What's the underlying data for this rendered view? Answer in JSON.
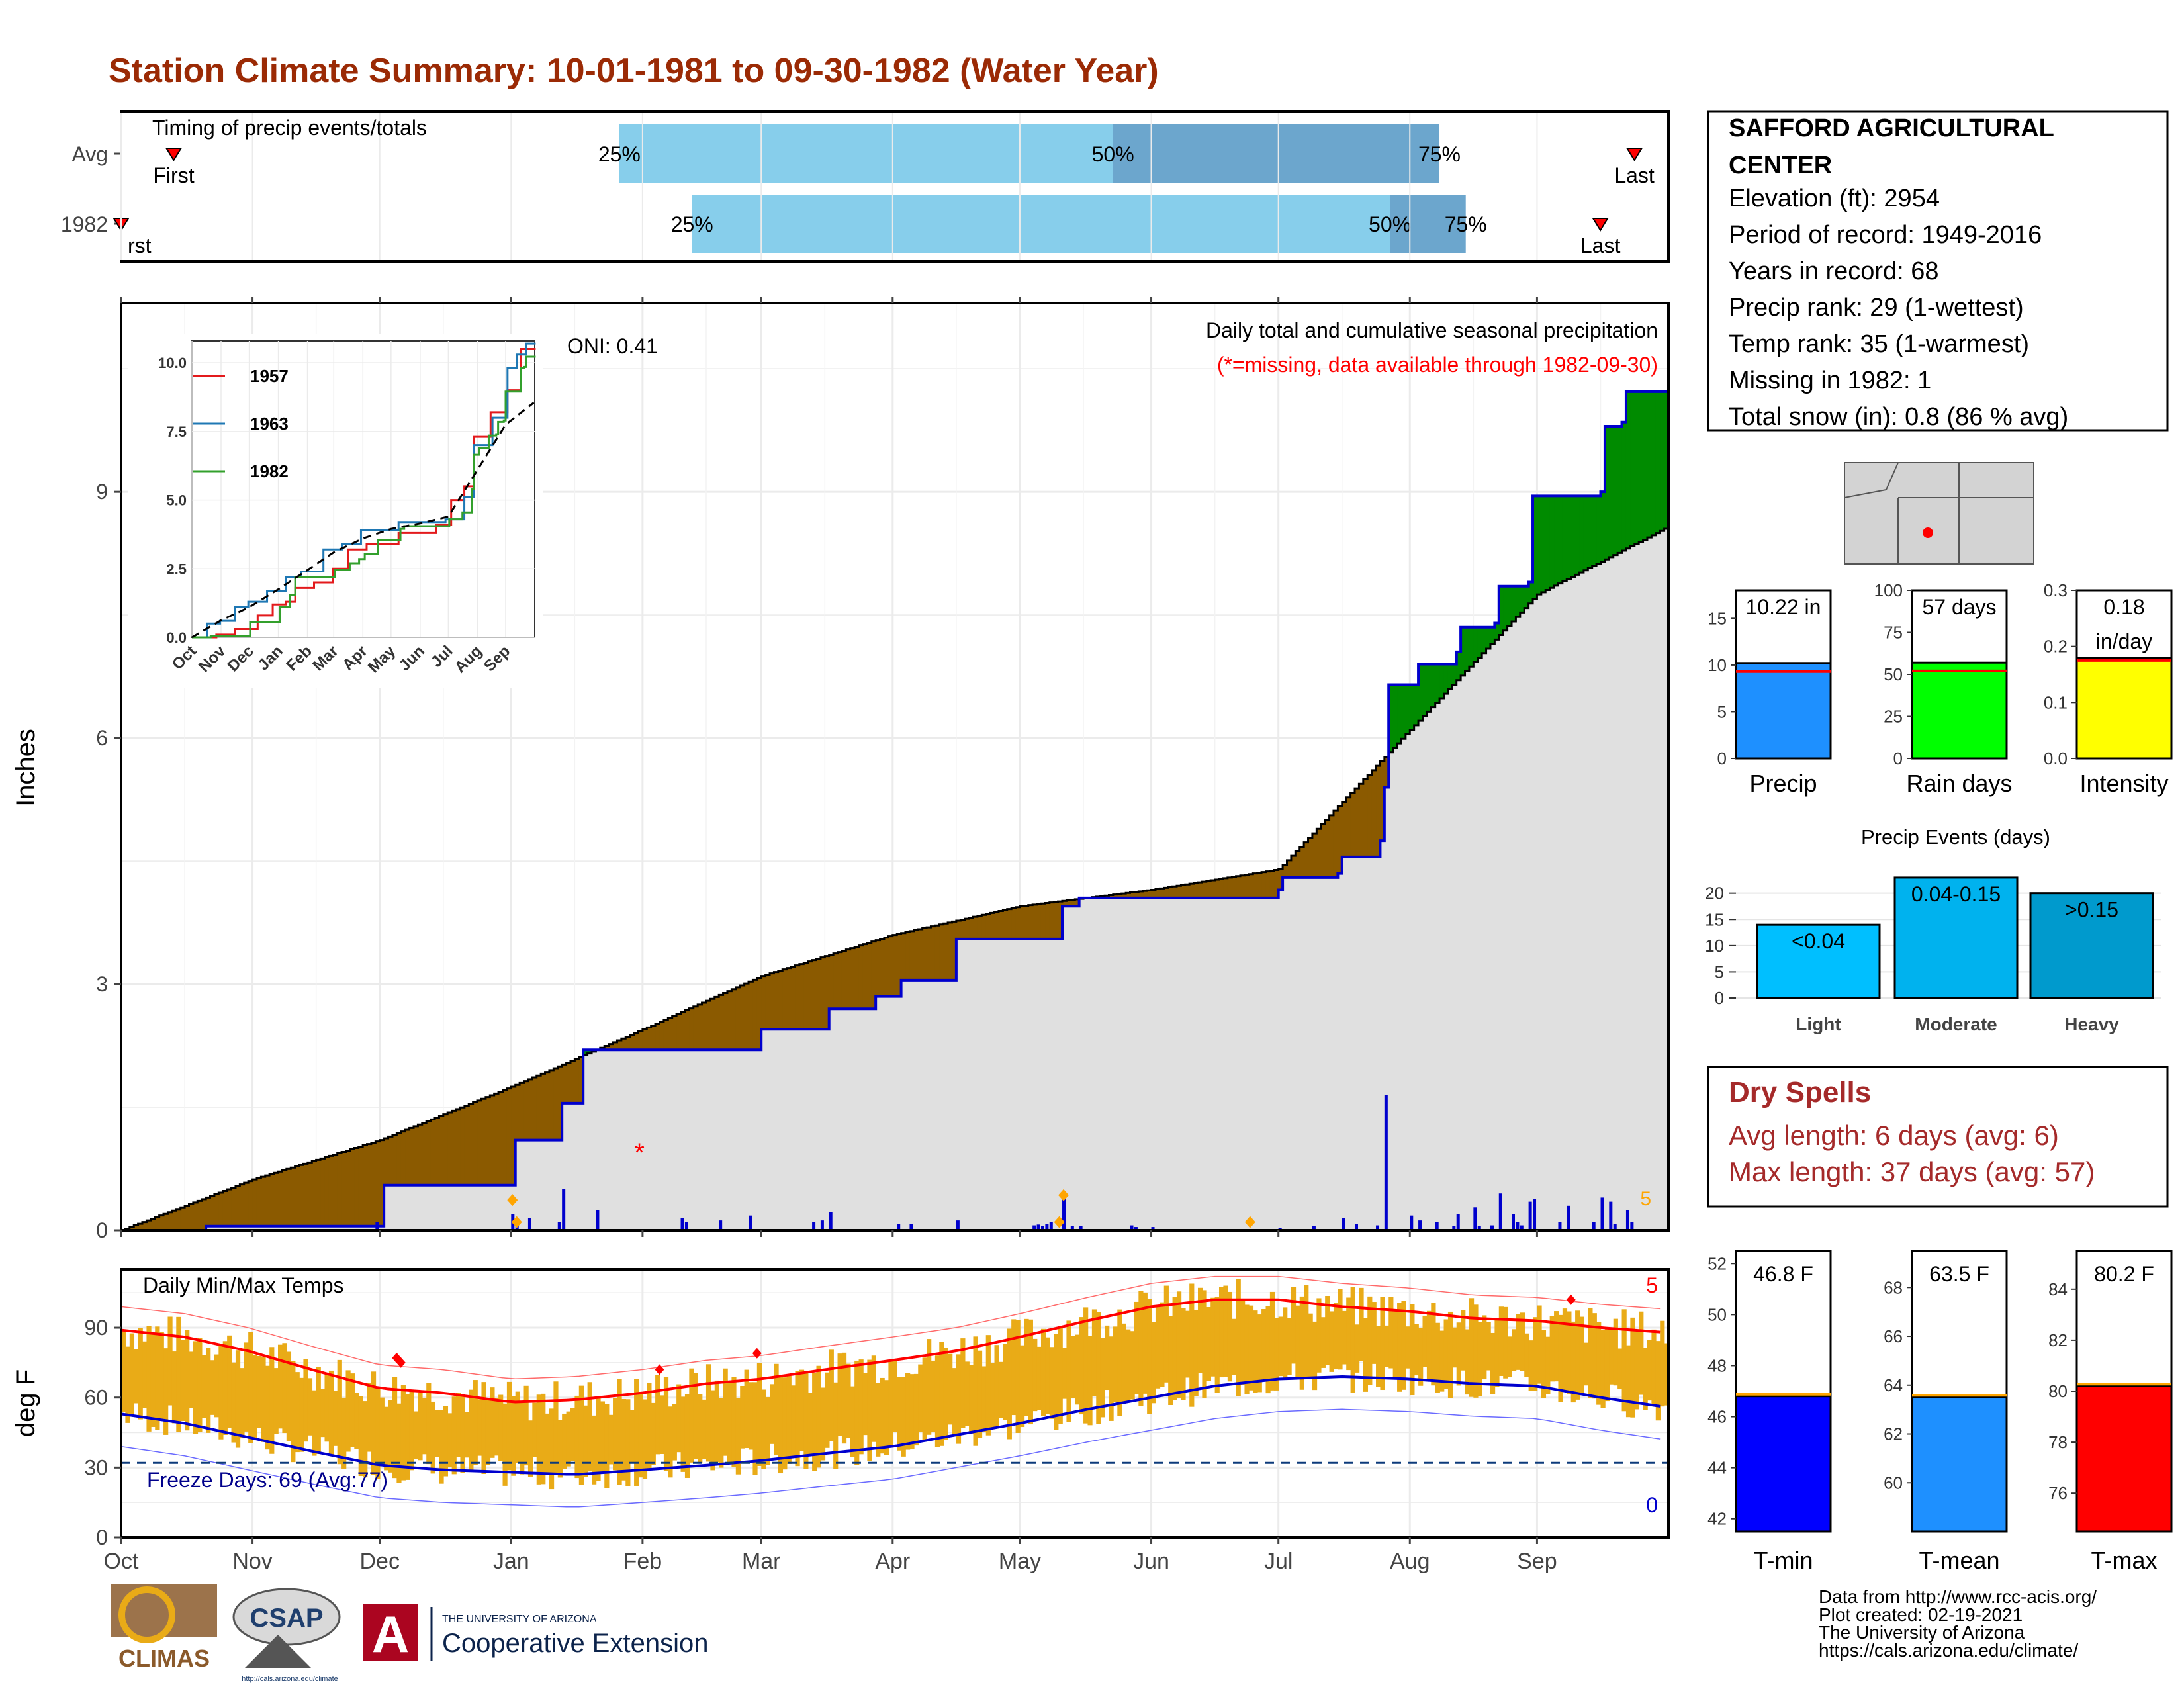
{
  "title": "Station Climate Summary: 10-01-1981 to 09-30-1982 (Water Year)",
  "colors": {
    "title": "#9b2a05",
    "light_blue": "#87ceeb",
    "mid_blue": "#6ca6cd",
    "gray_fill": "#e0e0e0",
    "above_avg": "#008b00",
    "below_avg": "#8b5a00",
    "obs_line": "#0000cd",
    "bar_yellow": "#e9ab17",
    "tmax_line": "#ff0000",
    "tmin_line": "#00008b",
    "precip_bar": "#1e90ff",
    "rain_bar": "#00ff00",
    "int_bar": "#ffff00",
    "light_ev": "#00bfff",
    "mod_ev": "#00b2ee",
    "heavy_ev": "#009acd",
    "tmin_bar": "#0000ff",
    "tmean_bar": "#1e90ff",
    "tmax_bar": "#ff0000",
    "dry_text": "#a52a2a"
  },
  "timing": {
    "title": "Timing of precip events/totals",
    "rows": [
      {
        "label": "Avg",
        "p25": 0.322,
        "p50": 0.641,
        "p75": 0.852,
        "first": 0.034,
        "last": 0.978,
        "l25": "25%",
        "l50": "50%",
        "l75": "75%",
        "lfirst": "First",
        "llast": "Last"
      },
      {
        "label": "1982",
        "p25": 0.369,
        "p50": 0.82,
        "p75": 0.869,
        "first": 0.0,
        "last": 0.956,
        "l25": "25%",
        "l50": "50%",
        "l75": "75%",
        "lfirst": "First",
        "llast": "Last"
      }
    ]
  },
  "station": {
    "name_line1": "SAFFORD AGRICULTURAL",
    "name_line2": "CENTER",
    "lines": [
      "Elevation (ft): 2954",
      "Period of record: 1949-2016",
      "Years in record: 68",
      "Precip rank: 29 (1-wettest)",
      "Temp rank: 35 (1-warmest)",
      "Missing in 1982: 1",
      "Total snow (in): 0.8 (86 % avg)"
    ]
  },
  "precip_chart": {
    "title": "Daily total and cumulative seasonal precipitation",
    "subtitle": "(*=missing, data available through 1982-09-30)",
    "oni": "ONI: 0.41",
    "ylabel": "Inches",
    "ylim": [
      0,
      11.3
    ],
    "yticks": [
      0,
      3,
      6,
      9
    ],
    "daily_axis_label": "5",
    "missing_marker": "*"
  },
  "months": [
    "Oct",
    "Nov",
    "Dec",
    "Jan",
    "Feb",
    "Mar",
    "Apr",
    "May",
    "Jun",
    "Jul",
    "Aug",
    "Sep"
  ],
  "inset": {
    "yticks": [
      "0.0",
      "2.5",
      "5.0",
      "7.5",
      "10.0"
    ],
    "legend": [
      {
        "name": "1957",
        "color": "#e31a1c"
      },
      {
        "name": "1963",
        "color": "#1f78b4"
      },
      {
        "name": "1982",
        "color": "#33a02c"
      }
    ]
  },
  "temp_chart": {
    "title": "Daily Min/Max Temps",
    "ylabel": "deg F",
    "yticks": [
      0,
      30,
      60,
      90
    ],
    "freeze_text": "Freeze Days: 69 (Avg:77)",
    "top_count": "5",
    "bottom_count": "0"
  },
  "summary_bars": [
    {
      "label": "Precip",
      "value_text": "10.22 in",
      "value": 10.22,
      "avg": 9.3,
      "max": 18,
      "ticks": [
        0,
        5,
        10,
        15
      ],
      "color": "#1e90ff"
    },
    {
      "label": "Rain days",
      "value_text": "57 days",
      "value": 57,
      "avg": 52,
      "max": 100,
      "ticks": [
        0,
        25,
        50,
        75,
        100
      ],
      "color": "#00ff00"
    },
    {
      "label": "Intensity",
      "value_text": "0.18",
      "value_text2": "in/day",
      "value": 0.18,
      "avg": 0.175,
      "max": 0.3,
      "ticks": [
        "0.0",
        "0.1",
        "0.2",
        "0.3"
      ],
      "color": "#ffff00"
    }
  ],
  "events": {
    "title": "Precip Events (days)",
    "bars": [
      {
        "label": "Light",
        "inner": "<0.04",
        "value": 14,
        "color": "#00bfff"
      },
      {
        "label": "Moderate",
        "inner": "0.04-0.15",
        "value": 23,
        "color": "#00b2ee"
      },
      {
        "label": "Heavy",
        "inner": ">0.15",
        "value": 20,
        "color": "#009acd"
      }
    ],
    "yticks": [
      0,
      5,
      10,
      15,
      20
    ]
  },
  "dry_spells": {
    "title": "Dry Spells",
    "avg": "Avg length: 6 days (avg: 6)",
    "max": "Max length: 37 days (avg: 57)"
  },
  "temp_bars": [
    {
      "label": "T-min",
      "value_text": "46.8 F",
      "value": 46.8,
      "min": 41.5,
      "max": 52.5,
      "ticks": [
        42,
        44,
        46,
        48,
        50,
        52
      ],
      "color": "#0000ff"
    },
    {
      "label": "T-mean",
      "value_text": "63.5 F",
      "value": 63.5,
      "min": 58,
      "max": 69.5,
      "ticks": [
        60,
        62,
        64,
        66,
        68
      ],
      "color": "#1e90ff"
    },
    {
      "label": "T-max",
      "value_text": "80.2 F",
      "value": 80.2,
      "min": 74.5,
      "max": 85.5,
      "ticks": [
        76,
        78,
        80,
        82,
        84
      ],
      "color": "#ff0000"
    }
  ],
  "footer": {
    "lines": [
      "Data from http://www.rcc-acis.org/",
      "Plot created: 02-19-2021",
      "The University of Arizona",
      "https://cals.arizona.edu/climate/"
    ],
    "climas": "CLIMAS",
    "csap": "CSAP",
    "csap_url": "http://cals.arizona.edu/climate",
    "ua_small": "THE UNIVERSITY OF ARIZONA",
    "ua_big": "Cooperative Extension",
    "ua_letter": "A"
  },
  "chart_data": {
    "type": "area",
    "x_unit": "day of water year",
    "cumulative_avg_inches": [
      [
        0,
        0
      ],
      [
        31,
        0.62
      ],
      [
        61,
        1.1
      ],
      [
        92,
        1.75
      ],
      [
        123,
        2.45
      ],
      [
        151,
        3.1
      ],
      [
        182,
        3.6
      ],
      [
        212,
        3.95
      ],
      [
        243,
        4.15
      ],
      [
        273,
        4.4
      ],
      [
        304,
        6.1
      ],
      [
        334,
        7.75
      ],
      [
        364,
        8.55
      ]
    ],
    "cumulative_1982_inches": [
      [
        0,
        0
      ],
      [
        20,
        0.05
      ],
      [
        60,
        0.05
      ],
      [
        62,
        0.55
      ],
      [
        92,
        0.55
      ],
      [
        93,
        1.1
      ],
      [
        103,
        1.1
      ],
      [
        104,
        1.55
      ],
      [
        108,
        1.55
      ],
      [
        109,
        2.2
      ],
      [
        150,
        2.2
      ],
      [
        151,
        2.45
      ],
      [
        166,
        2.45
      ],
      [
        167,
        2.7
      ],
      [
        177,
        2.7
      ],
      [
        178,
        2.85
      ],
      [
        183,
        2.85
      ],
      [
        184,
        3.05
      ],
      [
        196,
        3.05
      ],
      [
        197,
        3.55
      ],
      [
        221,
        3.55
      ],
      [
        222,
        3.95
      ],
      [
        225,
        3.95
      ],
      [
        226,
        4.05
      ],
      [
        273,
        4.15
      ],
      [
        274,
        4.3
      ],
      [
        287,
        4.35
      ],
      [
        288,
        4.55
      ],
      [
        297,
        4.75
      ],
      [
        298,
        5.4
      ],
      [
        299,
        6.65
      ],
      [
        305,
        6.65
      ],
      [
        306,
        6.9
      ],
      [
        315,
        7.05
      ],
      [
        316,
        7.35
      ],
      [
        324,
        7.4
      ],
      [
        325,
        7.85
      ],
      [
        332,
        7.9
      ],
      [
        333,
        8.95
      ],
      [
        349,
        9.0
      ],
      [
        350,
        9.8
      ],
      [
        354,
        9.85
      ],
      [
        355,
        10.22
      ],
      [
        364,
        10.22
      ]
    ],
    "daily_precip_1982": [
      [
        60,
        0.1
      ],
      [
        92,
        0.2
      ],
      [
        93,
        0.05
      ],
      [
        96,
        0.15
      ],
      [
        103,
        0.1
      ],
      [
        104,
        0.5
      ],
      [
        112,
        0.25
      ],
      [
        132,
        0.15
      ],
      [
        133,
        0.1
      ],
      [
        141,
        0.12
      ],
      [
        148,
        0.18
      ],
      [
        163,
        0.1
      ],
      [
        165,
        0.12
      ],
      [
        167,
        0.22
      ],
      [
        183,
        0.08
      ],
      [
        186,
        0.08
      ],
      [
        197,
        0.12
      ],
      [
        215,
        0.06
      ],
      [
        216,
        0.07
      ],
      [
        217,
        0.05
      ],
      [
        218,
        0.08
      ],
      [
        219,
        0.1
      ],
      [
        222,
        0.38
      ],
      [
        224,
        0.05
      ],
      [
        226,
        0.05
      ],
      [
        238,
        0.06
      ],
      [
        239,
        0.04
      ],
      [
        243,
        0.04
      ],
      [
        273,
        0.03
      ],
      [
        281,
        0.05
      ],
      [
        288,
        0.15
      ],
      [
        291,
        0.08
      ],
      [
        296,
        0.06
      ],
      [
        298,
        1.65
      ],
      [
        304,
        0.18
      ],
      [
        306,
        0.12
      ],
      [
        310,
        0.1
      ],
      [
        314,
        0.05
      ],
      [
        315,
        0.2
      ],
      [
        319,
        0.28
      ],
      [
        320,
        0.05
      ],
      [
        323,
        0.06
      ],
      [
        325,
        0.45
      ],
      [
        328,
        0.2
      ],
      [
        329,
        0.1
      ],
      [
        330,
        0.06
      ],
      [
        332,
        0.35
      ],
      [
        333,
        0.38
      ],
      [
        339,
        0.1
      ],
      [
        341,
        0.3
      ],
      [
        347,
        0.1
      ],
      [
        349,
        0.4
      ],
      [
        351,
        0.35
      ],
      [
        352,
        0.08
      ],
      [
        355,
        0.25
      ],
      [
        356,
        0.1
      ]
    ],
    "tmax_avg_curve_F": [
      [
        0,
        89
      ],
      [
        15,
        86
      ],
      [
        30,
        80
      ],
      [
        45,
        72
      ],
      [
        61,
        64
      ],
      [
        76,
        62
      ],
      [
        92,
        58
      ],
      [
        107,
        59
      ],
      [
        123,
        62
      ],
      [
        138,
        66
      ],
      [
        151,
        68
      ],
      [
        166,
        72
      ],
      [
        182,
        76
      ],
      [
        197,
        80
      ],
      [
        212,
        86
      ],
      [
        228,
        93
      ],
      [
        243,
        99
      ],
      [
        258,
        102
      ],
      [
        273,
        102
      ],
      [
        288,
        99
      ],
      [
        304,
        97
      ],
      [
        319,
        94
      ],
      [
        334,
        93
      ],
      [
        349,
        90
      ],
      [
        364,
        88
      ]
    ],
    "tmin_avg_curve_F": [
      [
        0,
        53
      ],
      [
        15,
        49
      ],
      [
        30,
        43
      ],
      [
        45,
        37
      ],
      [
        61,
        31
      ],
      [
        76,
        29
      ],
      [
        92,
        28
      ],
      [
        107,
        27
      ],
      [
        123,
        29
      ],
      [
        138,
        31
      ],
      [
        151,
        33
      ],
      [
        166,
        36
      ],
      [
        182,
        39
      ],
      [
        197,
        44
      ],
      [
        212,
        49
      ],
      [
        228,
        55
      ],
      [
        243,
        60
      ],
      [
        258,
        65
      ],
      [
        273,
        68
      ],
      [
        288,
        69
      ],
      [
        304,
        68
      ],
      [
        319,
        66
      ],
      [
        334,
        65
      ],
      [
        349,
        60
      ],
      [
        364,
        56
      ]
    ],
    "freeze_line_F": 32,
    "ylim_temp": [
      0,
      115
    ]
  }
}
